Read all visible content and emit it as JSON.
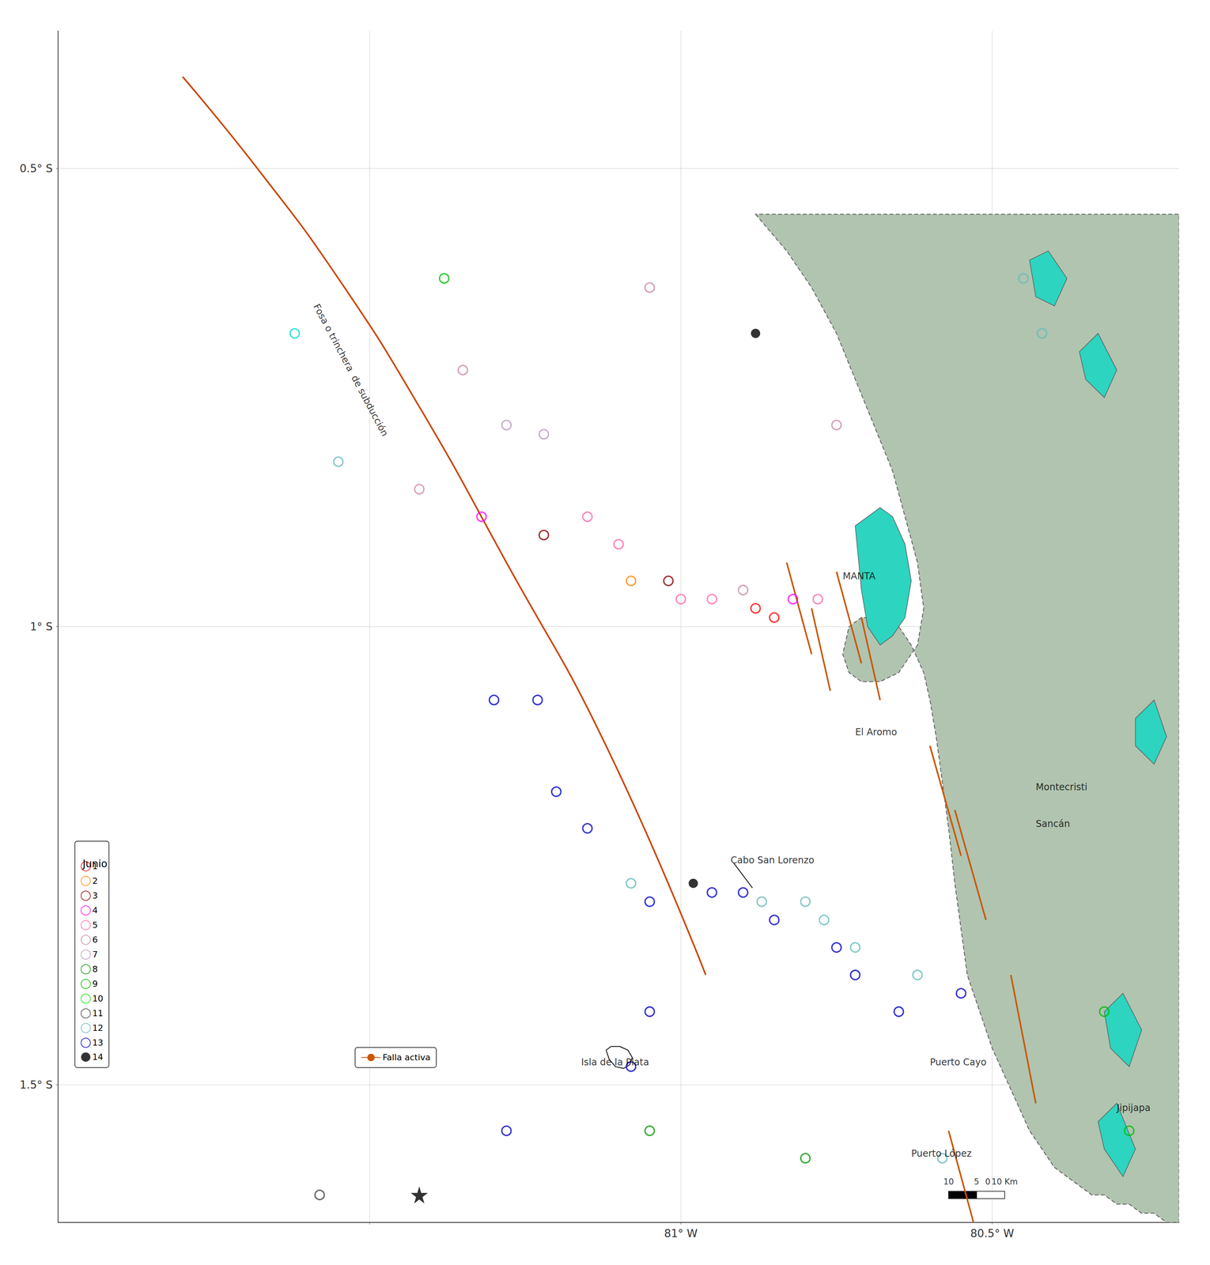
{
  "chart_data": {
    "type": "scatter",
    "xlim": [
      -82.0,
      -80.2
    ],
    "ylim": [
      -1.65,
      -0.35
    ],
    "xticks": [
      {
        "value": -81.5,
        "label": null
      },
      {
        "value": -81.0,
        "label": "81° W"
      },
      {
        "value": -80.5,
        "label": "80.5° W"
      }
    ],
    "yticks": [
      {
        "value": -1.5,
        "label": "1.5° S"
      },
      {
        "value": -1.0,
        "label": "1° S"
      },
      {
        "value": -0.5,
        "label": "0.5° S"
      }
    ],
    "grid": true,
    "legend": "lower left",
    "legend_title": "Junio",
    "series": [
      {
        "type": "polygon",
        "color": "#b0c4b0",
        "line_style": "dashed",
        "x": [
          -80.88,
          -80.83,
          -80.79,
          -80.75,
          -80.72,
          -80.69,
          -80.66,
          -80.64,
          -80.62,
          -80.61,
          -80.62,
          -80.65,
          -80.68,
          -80.71,
          -80.73,
          -80.74,
          -80.73,
          -80.71,
          -80.68,
          -80.65,
          -80.63,
          -80.61,
          -80.6,
          -80.59,
          -80.58,
          -80.57,
          -80.56,
          -80.55,
          -80.54,
          -80.52,
          -80.5,
          -80.48,
          -80.46,
          -80.44,
          -80.42,
          -80.4,
          -80.38,
          -80.36,
          -80.34,
          -80.32,
          -80.3,
          -80.28,
          -80.26,
          -80.24,
          -80.22,
          -80.2,
          -80.2,
          -80.2,
          -80.88
        ],
        "y": [
          -0.55,
          -0.59,
          -0.63,
          -0.68,
          -0.73,
          -0.78,
          -0.83,
          -0.88,
          -0.93,
          -0.98,
          -1.02,
          -1.05,
          -1.06,
          -1.06,
          -1.05,
          -1.03,
          -1.0,
          -0.99,
          -0.99,
          -1.0,
          -1.02,
          -1.05,
          -1.08,
          -1.12,
          -1.17,
          -1.22,
          -1.28,
          -1.33,
          -1.38,
          -1.42,
          -1.46,
          -1.49,
          -1.52,
          -1.55,
          -1.57,
          -1.59,
          -1.6,
          -1.61,
          -1.62,
          -1.62,
          -1.63,
          -1.63,
          -1.64,
          -1.64,
          -1.65,
          -1.65,
          -1.65,
          -0.55,
          -0.55
        ]
      },
      {
        "type": "polygon",
        "color": "#2dd4bf",
        "x": [
          -80.72,
          -80.7,
          -80.68,
          -80.66,
          -80.64,
          -80.63,
          -80.64,
          -80.66,
          -80.68,
          -80.7,
          -80.71,
          -80.72
        ],
        "y": [
          -0.89,
          -0.88,
          -0.87,
          -0.88,
          -0.91,
          -0.95,
          -0.99,
          -1.01,
          -1.02,
          -1.0,
          -0.96,
          -0.89
        ]
      },
      {
        "type": "polygon",
        "color": "#2dd4bf",
        "x": [
          -80.44,
          -80.41,
          -80.38,
          -80.4,
          -80.43,
          -80.44
        ],
        "y": [
          -0.6,
          -0.59,
          -0.62,
          -0.65,
          -0.64,
          -0.6
        ]
      },
      {
        "type": "polygon",
        "color": "#2dd4bf",
        "x": [
          -80.36,
          -80.33,
          -80.3,
          -80.32,
          -80.35,
          -80.36
        ],
        "y": [
          -0.7,
          -0.68,
          -0.72,
          -0.75,
          -0.73,
          -0.7
        ]
      },
      {
        "type": "polygon",
        "color": "#2dd4bf",
        "x": [
          -80.27,
          -80.24,
          -80.22,
          -80.24,
          -80.27,
          -80.27
        ],
        "y": [
          -1.1,
          -1.08,
          -1.12,
          -1.15,
          -1.13,
          -1.1
        ]
      },
      {
        "type": "polygon",
        "color": "#2dd4bf",
        "x": [
          -80.32,
          -80.29,
          -80.26,
          -80.28,
          -80.31,
          -80.32
        ],
        "y": [
          -1.42,
          -1.4,
          -1.44,
          -1.48,
          -1.46,
          -1.42
        ]
      },
      {
        "type": "polygon",
        "color": "#2dd4bf",
        "x": [
          -80.33,
          -80.3,
          -80.27,
          -80.29,
          -80.32,
          -80.33
        ],
        "y": [
          -1.54,
          -1.52,
          -1.57,
          -1.6,
          -1.57,
          -1.54
        ]
      },
      {
        "type": "line",
        "color": "#cc4400",
        "line_style": "smooth",
        "x": [
          -81.8,
          -81.68,
          -81.55,
          -81.42,
          -81.28,
          -81.12,
          -80.96
        ],
        "y": [
          -0.4,
          -0.5,
          -0.62,
          -0.76,
          -0.93,
          -1.13,
          -1.38
        ]
      },
      {
        "type": "line",
        "name": "Falla activa",
        "color": "#cc5500",
        "x": [
          -80.83,
          -80.79,
          null,
          -80.79,
          -80.76,
          null,
          -80.75,
          -80.71,
          null,
          -80.71,
          -80.68,
          null,
          -80.6,
          -80.55,
          null,
          -80.56,
          -80.51,
          null,
          -80.47,
          -80.43,
          null,
          -80.57,
          -80.53
        ],
        "y": [
          -0.93,
          -1.03,
          null,
          -0.98,
          -1.07,
          null,
          -0.94,
          -1.04,
          null,
          -0.99,
          -1.08,
          null,
          -1.13,
          -1.25,
          null,
          -1.2,
          -1.32,
          null,
          -1.38,
          -1.52,
          null,
          -1.55,
          -1.65
        ]
      },
      {
        "type": "line",
        "color": "#000000",
        "x": [
          -81.12,
          -81.112,
          -81.098,
          -81.085,
          -81.078,
          -81.082,
          -81.092,
          -81.105,
          -81.115,
          -81.12
        ],
        "y": [
          -1.462,
          -1.458,
          -1.458,
          -1.462,
          -1.47,
          -1.478,
          -1.482,
          -1.48,
          -1.472,
          -1.462
        ]
      },
      {
        "type": "line",
        "color": "#000000",
        "x": [
          -80.915,
          -80.885
        ],
        "y": [
          -1.258,
          -1.285
        ]
      },
      {
        "type": "scatter",
        "name": "1",
        "color": "#ff0000",
        "marker": "ring",
        "x": [
          -80.88,
          -80.85
        ],
        "y": [
          -0.98,
          -0.99
        ]
      },
      {
        "type": "scatter",
        "name": "2",
        "color": "#ff8800",
        "marker": "ring",
        "x": [
          -81.08
        ],
        "y": [
          -0.95
        ]
      },
      {
        "type": "scatter",
        "name": "3",
        "color": "#880000",
        "marker": "ring",
        "x": [
          -81.22,
          -81.02
        ],
        "y": [
          -0.9,
          -0.95
        ]
      },
      {
        "type": "scatter",
        "name": "4",
        "color": "#ff00ff",
        "marker": "ring",
        "x": [
          -81.32,
          -80.82
        ],
        "y": [
          -0.88,
          -0.97
        ]
      },
      {
        "type": "scatter",
        "name": "5",
        "color": "#ff66aa",
        "marker": "ring",
        "x": [
          -81.15,
          -81.1,
          -81.0,
          -80.95,
          -80.78
        ],
        "y": [
          -0.88,
          -0.91,
          -0.97,
          -0.97,
          -0.97
        ]
      },
      {
        "type": "scatter",
        "name": "6",
        "color": "#cc88aa",
        "marker": "ring",
        "x": [
          -81.05,
          -81.35,
          -81.42,
          -80.9,
          -80.75
        ],
        "y": [
          -0.63,
          -0.72,
          -0.85,
          -0.96,
          -0.78
        ]
      },
      {
        "type": "scatter",
        "name": "7",
        "color": "#bb99bb",
        "marker": "ring",
        "x": [
          -81.28,
          -81.22
        ],
        "y": [
          -0.78,
          -0.79
        ]
      },
      {
        "type": "scatter",
        "name": "8",
        "color": "#009900",
        "marker": "ring",
        "x": [
          -81.05,
          -80.8
        ],
        "y": [
          -1.55,
          -1.58
        ]
      },
      {
        "type": "scatter",
        "name": "9",
        "color": "#00bb00",
        "marker": "ring",
        "x": [
          -81.38,
          -80.32,
          -80.28
        ],
        "y": [
          -0.62,
          -1.42,
          -1.55
        ]
      },
      {
        "type": "scatter",
        "name": "10",
        "color": "#00ee00",
        "marker": "ring",
        "x": [
          -81.62
        ],
        "y": [
          -0.68
        ],
        "colors": [
          "#00dddd"
        ]
      },
      {
        "type": "scatter",
        "name": "11",
        "color": "#444444",
        "marker": "ring",
        "x": [
          -81.58
        ],
        "y": [
          -1.62
        ]
      },
      {
        "type": "scatter",
        "name": "12",
        "color": "#66bbbb",
        "marker": "ring",
        "x": [
          -81.55,
          -81.08,
          -80.87,
          -80.8,
          -80.77,
          -80.72,
          -80.62,
          -80.45,
          -80.42,
          -80.58
        ],
        "y": [
          -0.82,
          -1.28,
          -1.3,
          -1.3,
          -1.32,
          -1.35,
          -1.38,
          -0.62,
          -0.68,
          -1.58
        ]
      },
      {
        "type": "scatter",
        "name": "13",
        "color": "#0000cc",
        "marker": "ring",
        "x": [
          -81.3,
          -81.23,
          -81.2,
          -81.15,
          -81.05,
          -80.95,
          -80.9,
          -80.85,
          -80.75,
          -80.72,
          -80.65,
          -80.55,
          -81.05,
          -81.08,
          -81.28
        ],
        "y": [
          -1.08,
          -1.08,
          -1.18,
          -1.22,
          -1.3,
          -1.29,
          -1.29,
          -1.32,
          -1.35,
          -1.38,
          -1.42,
          -1.4,
          -1.42,
          -1.48,
          -1.55
        ]
      },
      {
        "type": "scatter",
        "name": "14",
        "color": "#000000",
        "marker": "circle",
        "x": [
          -80.98,
          -80.88
        ],
        "y": [
          -1.28,
          -0.68
        ]
      },
      {
        "type": "scatter",
        "color": "#000000",
        "marker": "star",
        "x": [
          -81.42
        ],
        "y": [
          -1.62
        ]
      },
      {
        "type": "polygon",
        "color": "#000000",
        "x": [
          -80.57,
          -80.525,
          -80.525,
          -80.57
        ],
        "y": [
          -1.624,
          -1.624,
          -1.616,
          -1.616
        ]
      },
      {
        "type": "polygon",
        "color": "#ffffff",
        "x": [
          -80.525,
          -80.48,
          -80.48,
          -80.525
        ],
        "y": [
          -1.624,
          -1.624,
          -1.616,
          -1.616
        ]
      }
    ],
    "trench_label": {
      "text": "Fosa o trinchera  de subducción",
      "x": -81.53,
      "y": -0.72
    },
    "annotations": [
      {
        "text": "MANTA",
        "x": -80.74,
        "y": -0.945
      },
      {
        "text": "El Aromo",
        "x": -80.72,
        "y": -1.115
      },
      {
        "text": "Montecristi",
        "x": -80.43,
        "y": -1.175
      },
      {
        "text": "Sancán",
        "x": -80.43,
        "y": -1.215
      },
      {
        "text": "Cabo San Lorenzo",
        "x": -80.92,
        "y": -1.255
      },
      {
        "text": "Isla de la Plata",
        "x": -81.16,
        "y": -1.475
      },
      {
        "text": "Puerto Cayo",
        "x": -80.6,
        "y": -1.475
      },
      {
        "text": "Puerto López",
        "x": -80.63,
        "y": -1.575
      },
      {
        "text": "Jipijapa",
        "x": -80.3,
        "y": -1.525
      }
    ],
    "scale_labels": [
      {
        "text": "10",
        "x": -80.57,
        "y": -1.61
      },
      {
        "text": "5",
        "x": -80.525,
        "y": -1.61
      },
      {
        "text": "0",
        "x": -80.507,
        "y": -1.61
      },
      {
        "text": "10 Km",
        "x": -80.48,
        "y": -1.61
      }
    ]
  }
}
